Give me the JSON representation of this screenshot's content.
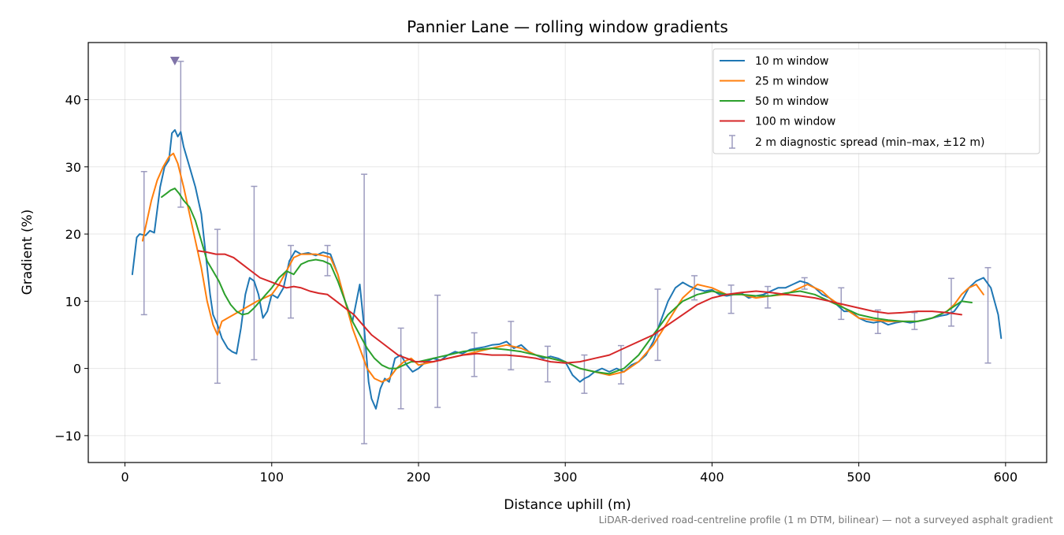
{
  "chart_data": {
    "type": "line",
    "title": "Pannier Lane — rolling window gradients",
    "xlabel": "Distance uphill (m)",
    "ylabel": "Gradient (%)",
    "xlim": [
      -25,
      628
    ],
    "ylim": [
      -14,
      48.5
    ],
    "xticks": [
      0,
      100,
      200,
      300,
      400,
      500,
      600
    ],
    "xtick_labels": [
      "0",
      "100",
      "200",
      "300",
      "400",
      "500",
      "600"
    ],
    "yticks": [
      -10,
      0,
      10,
      20,
      30,
      40
    ],
    "ytick_labels": [
      "−10",
      "0",
      "10",
      "20",
      "30",
      "40"
    ],
    "grid": true,
    "legend_position": "top-right",
    "footnote": "LiDAR-derived road-centreline profile (1 m DTM, bilinear) — not a surveyed asphalt gradient",
    "series": [
      {
        "name": "10 m window",
        "color": "#1f77b4",
        "x": [
          5,
          8,
          10,
          14,
          17,
          20,
          24,
          27,
          30,
          32,
          34,
          36,
          38,
          40,
          44,
          48,
          52,
          55,
          58,
          60,
          63,
          66,
          70,
          73,
          76,
          79,
          82,
          85,
          88,
          91,
          94,
          97,
          100,
          104,
          108,
          112,
          116,
          120,
          125,
          130,
          135,
          140,
          145,
          150,
          155,
          160,
          163,
          166,
          168,
          171,
          174,
          177,
          180,
          184,
          188,
          192,
          196,
          200,
          205,
          210,
          215,
          220,
          225,
          230,
          235,
          240,
          245,
          250,
          255,
          260,
          265,
          270,
          275,
          280,
          285,
          290,
          295,
          300,
          305,
          310,
          313,
          316,
          320,
          325,
          330,
          335,
          340,
          345,
          350,
          355,
          360,
          365,
          370,
          375,
          380,
          385,
          390,
          395,
          400,
          405,
          410,
          415,
          420,
          425,
          430,
          435,
          440,
          445,
          450,
          455,
          460,
          465,
          470,
          475,
          480,
          485,
          490,
          495,
          500,
          505,
          510,
          515,
          520,
          525,
          530,
          535,
          540,
          545,
          550,
          555,
          560,
          565,
          570,
          575,
          580,
          585,
          590,
          595,
          597
        ],
        "y": [
          14,
          19.5,
          20,
          19.8,
          20.5,
          20.2,
          27,
          30,
          31,
          35,
          35.5,
          34.5,
          35.2,
          33,
          30,
          27,
          23,
          17,
          11,
          8,
          6.5,
          4.5,
          3,
          2.5,
          2.2,
          6,
          11,
          13.5,
          13,
          11,
          7.5,
          8.5,
          11,
          10.5,
          12,
          16,
          17.5,
          17,
          17.2,
          16.8,
          17.3,
          17,
          14,
          10,
          7,
          12.5,
          6,
          -2,
          -4.5,
          -6,
          -3,
          -1.5,
          -2,
          1.5,
          2,
          0.5,
          -0.5,
          0,
          1,
          1.5,
          1.2,
          2,
          2.5,
          2.2,
          2.8,
          3,
          3.2,
          3.5,
          3.6,
          4,
          3,
          3.5,
          2.5,
          2,
          1.5,
          1.8,
          1.5,
          1,
          -1,
          -2,
          -1.5,
          -1.2,
          -0.5,
          0,
          -0.5,
          0,
          -0.5,
          0.5,
          1,
          2,
          4,
          7,
          10,
          12,
          12.8,
          12.2,
          11.8,
          11.5,
          11.7,
          11,
          10.8,
          11,
          11.2,
          10.5,
          10.8,
          11,
          11.5,
          12,
          12,
          12.5,
          13,
          12.7,
          12,
          11,
          10.5,
          9.5,
          8.5,
          8.5,
          7.5,
          7,
          6.8,
          7,
          6.5,
          6.8,
          7,
          6.8,
          7,
          7.2,
          7.5,
          7.8,
          8,
          8.5,
          10,
          12,
          13,
          13.5,
          12,
          8,
          4.5
        ]
      },
      {
        "name": "25 m window",
        "color": "#ff7f0e",
        "x": [
          12,
          15,
          18,
          22,
          26,
          30,
          33,
          36,
          40,
          44,
          48,
          52,
          56,
          60,
          63,
          66,
          70,
          74,
          78,
          82,
          86,
          90,
          95,
          100,
          105,
          110,
          115,
          120,
          125,
          130,
          135,
          140,
          145,
          150,
          155,
          160,
          165,
          170,
          175,
          180,
          185,
          190,
          195,
          200,
          210,
          220,
          230,
          240,
          250,
          260,
          270,
          280,
          290,
          300,
          310,
          320,
          330,
          340,
          350,
          360,
          370,
          380,
          390,
          400,
          410,
          420,
          430,
          440,
          450,
          460,
          465,
          470,
          475,
          480,
          490,
          500,
          510,
          520,
          530,
          540,
          550,
          560,
          565,
          570,
          575,
          580,
          585
        ],
        "y": [
          19,
          22,
          25,
          28,
          30,
          31.5,
          32,
          30.5,
          27,
          23,
          19,
          15,
          10,
          6.5,
          5,
          7,
          7.5,
          8,
          8.5,
          9,
          9.5,
          10,
          10.5,
          11,
          12.5,
          14.5,
          16.5,
          17,
          17,
          17,
          16.8,
          16.5,
          14,
          10,
          6,
          3,
          0,
          -1.5,
          -2,
          -1.5,
          0,
          1,
          1.5,
          0.5,
          1,
          1.5,
          2,
          2.5,
          3,
          3.5,
          3,
          2,
          1.5,
          1,
          0,
          -0.5,
          -1,
          -0.5,
          1,
          3.5,
          7,
          10.5,
          12.5,
          12,
          11,
          11,
          10.5,
          10.8,
          11,
          12,
          12.5,
          12,
          11.5,
          10.5,
          9,
          7.5,
          7.2,
          7,
          7,
          7,
          7.5,
          8.5,
          9.5,
          11,
          12,
          12.5,
          11
        ]
      },
      {
        "name": "50 m window",
        "color": "#2ca02c",
        "x": [
          25,
          28,
          31,
          34,
          37,
          40,
          44,
          48,
          52,
          56,
          60,
          64,
          68,
          72,
          76,
          80,
          84,
          88,
          92,
          96,
          100,
          105,
          110,
          115,
          120,
          125,
          130,
          135,
          140,
          145,
          150,
          155,
          160,
          165,
          170,
          175,
          180,
          185,
          190,
          195,
          200,
          210,
          220,
          230,
          240,
          250,
          260,
          270,
          280,
          290,
          300,
          310,
          320,
          330,
          340,
          350,
          360,
          370,
          380,
          390,
          400,
          410,
          420,
          430,
          440,
          450,
          460,
          470,
          480,
          490,
          500,
          510,
          520,
          530,
          540,
          550,
          560,
          570,
          577
        ],
        "y": [
          25.5,
          26,
          26.5,
          26.8,
          26,
          25,
          24,
          22,
          19,
          16,
          14.5,
          13,
          11,
          9.5,
          8.5,
          8,
          8.2,
          9,
          10,
          11,
          12,
          13.5,
          14.5,
          14,
          15.5,
          16,
          16.2,
          16,
          15.5,
          13,
          10,
          7,
          5,
          3,
          1.5,
          0.5,
          0,
          0,
          0.5,
          1,
          1,
          1.5,
          2,
          2.5,
          2.8,
          3,
          2.8,
          2.5,
          2,
          1.5,
          1,
          0,
          -0.5,
          -0.8,
          0,
          2,
          5,
          8,
          10,
          11,
          11.5,
          11,
          11,
          10.8,
          10.8,
          11.2,
          11.5,
          11,
          10,
          9,
          8,
          7.5,
          7.2,
          7,
          7,
          7.5,
          8.5,
          10,
          9.8
        ]
      },
      {
        "name": "100 m window",
        "color": "#d62728",
        "x": [
          50,
          56,
          62,
          68,
          74,
          80,
          86,
          92,
          98,
          104,
          110,
          115,
          120,
          126,
          132,
          138,
          144,
          150,
          156,
          162,
          168,
          174,
          180,
          186,
          192,
          198,
          204,
          210,
          220,
          230,
          240,
          250,
          260,
          270,
          280,
          290,
          300,
          310,
          320,
          330,
          340,
          350,
          360,
          370,
          380,
          390,
          400,
          410,
          420,
          430,
          440,
          450,
          460,
          470,
          480,
          490,
          500,
          510,
          520,
          530,
          540,
          550,
          560,
          570
        ],
        "y": [
          17.5,
          17.3,
          17,
          17,
          16.5,
          15.5,
          14.5,
          13.5,
          13,
          12.5,
          12,
          12.2,
          12,
          11.5,
          11.2,
          11,
          10,
          9,
          8,
          6.5,
          5,
          4,
          3,
          2,
          1.5,
          1,
          1,
          1,
          1.5,
          2,
          2.2,
          2,
          2,
          1.8,
          1.5,
          1,
          0.8,
          1,
          1.5,
          2,
          3,
          4,
          5,
          6.5,
          8,
          9.5,
          10.5,
          11,
          11.3,
          11.5,
          11.3,
          11,
          10.8,
          10.5,
          10,
          9.5,
          9,
          8.5,
          8.2,
          8.3,
          8.5,
          8.5,
          8.3,
          8
        ]
      }
    ],
    "errorbars": {
      "name": "2 m diagnostic spread (min–max, ±12 m)",
      "color": "#9c9bbf",
      "x": [
        13,
        38,
        63,
        88,
        113,
        138,
        163,
        188,
        213,
        238,
        263,
        288,
        313,
        338,
        363,
        388,
        413,
        438,
        463,
        488,
        513,
        538,
        563,
        588
      ],
      "low": [
        8,
        24,
        -2.2,
        1.3,
        7.5,
        13.8,
        -11.2,
        -6,
        -5.8,
        -1.2,
        -0.2,
        -2,
        -3.7,
        -2.3,
        1.2,
        10.2,
        8.2,
        9,
        11.8,
        7.3,
        5.2,
        5.8,
        6.3,
        0.8
      ],
      "high": [
        29.3,
        45.7,
        20.7,
        27.1,
        18.3,
        18.3,
        28.9,
        6,
        10.9,
        5.3,
        7,
        3.3,
        2,
        3.4,
        11.8,
        13.8,
        12.4,
        12.2,
        13.5,
        12,
        8.7,
        8.3,
        13.4,
        15
      ]
    },
    "clip_marker": {
      "x": 34,
      "y": 45.8,
      "color": "#8074a8"
    }
  }
}
